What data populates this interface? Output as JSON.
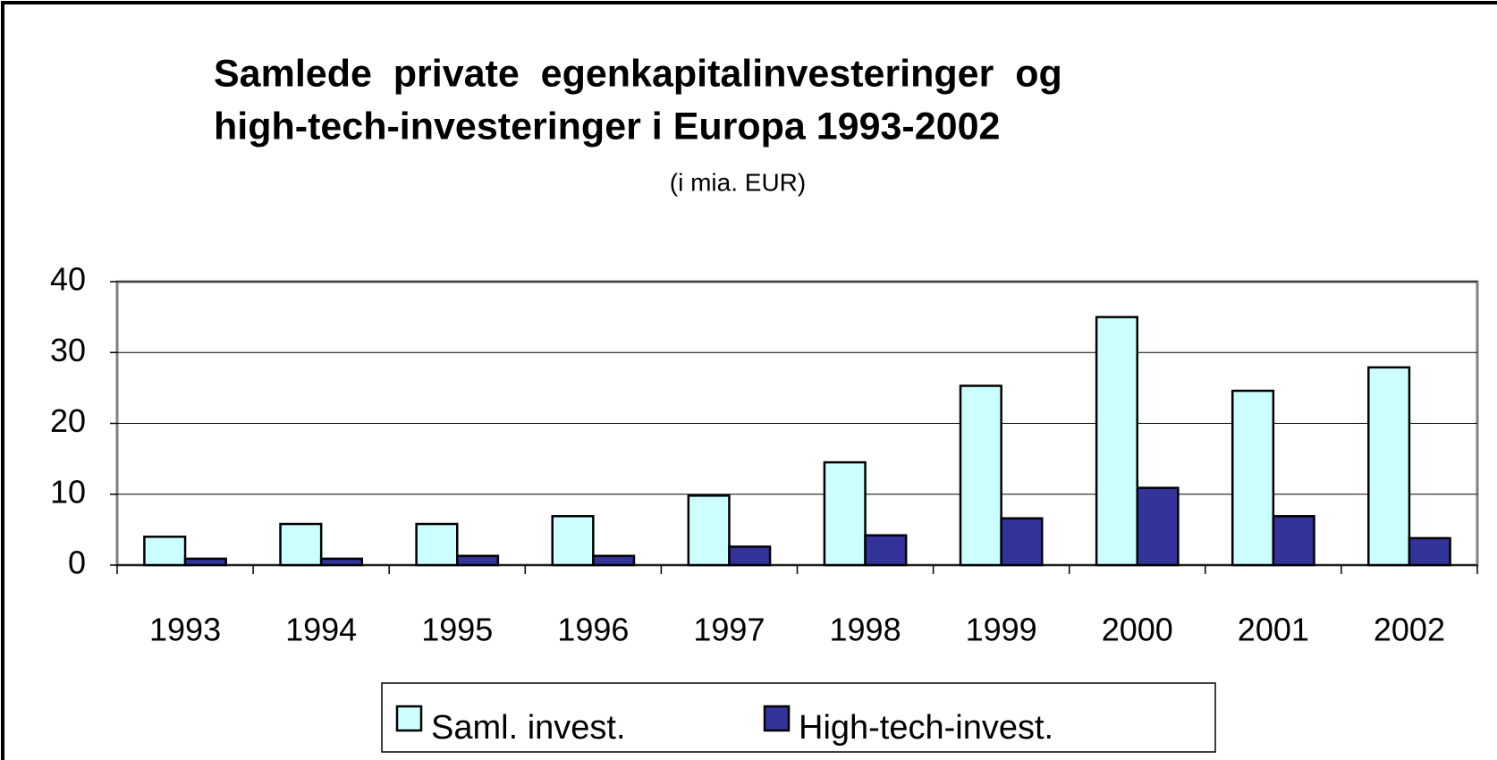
{
  "chart_data": {
    "type": "bar",
    "title": [
      "Samlede  private  egenkapitalinvesteringer  og",
      "high-tech-investeringer i Europa 1993-2002"
    ],
    "subtitle": "(i mia. EUR)",
    "categories": [
      "1993",
      "1994",
      "1995",
      "1996",
      "1997",
      "1998",
      "1999",
      "2000",
      "2001",
      "2002"
    ],
    "series": [
      {
        "name": "Saml. invest.",
        "color": "#ccffff",
        "values": [
          4.0,
          5.8,
          5.8,
          6.9,
          9.8,
          14.5,
          25.3,
          35.0,
          24.6,
          27.9
        ]
      },
      {
        "name": "High-tech-invest.",
        "color": "#333399",
        "values": [
          0.9,
          0.9,
          1.3,
          1.3,
          2.6,
          4.2,
          6.6,
          10.9,
          6.9,
          3.8
        ]
      }
    ],
    "ylim": [
      0,
      40
    ],
    "yticks": [
      0,
      10,
      20,
      30,
      40
    ],
    "grid": true,
    "legend": "bottom"
  }
}
